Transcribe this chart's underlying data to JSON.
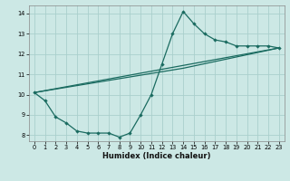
{
  "xlabel": "Humidex (Indice chaleur)",
  "bg_color": "#cce8e5",
  "grid_color": "#aacfcc",
  "line_color": "#1a6b60",
  "xlim": [
    -0.5,
    23.5
  ],
  "ylim": [
    7.7,
    14.4
  ],
  "xticks": [
    0,
    1,
    2,
    3,
    4,
    5,
    6,
    7,
    8,
    9,
    10,
    11,
    12,
    13,
    14,
    15,
    16,
    17,
    18,
    19,
    20,
    21,
    22,
    23
  ],
  "yticks": [
    8,
    9,
    10,
    11,
    12,
    13,
    14
  ],
  "line1_x": [
    0,
    1,
    2,
    3,
    4,
    5,
    6,
    7,
    8,
    9,
    10,
    11,
    12,
    13,
    14,
    15,
    16,
    17,
    18,
    19,
    20,
    21,
    22,
    23
  ],
  "line1_y": [
    10.1,
    9.7,
    8.9,
    8.6,
    8.2,
    8.1,
    8.1,
    8.1,
    7.9,
    8.1,
    9.0,
    10.0,
    11.5,
    13.0,
    14.1,
    13.5,
    13.0,
    12.7,
    12.6,
    12.4,
    12.4,
    12.4,
    12.4,
    12.3
  ],
  "line2_x": [
    0,
    23
  ],
  "line2_y": [
    10.1,
    12.3
  ],
  "line3_x": [
    0,
    14,
    23
  ],
  "line3_y": [
    10.1,
    11.3,
    12.3
  ],
  "xlabel_fontsize": 6.0,
  "tick_fontsize": 4.8,
  "marker_size": 2.2,
  "linewidth": 0.9
}
